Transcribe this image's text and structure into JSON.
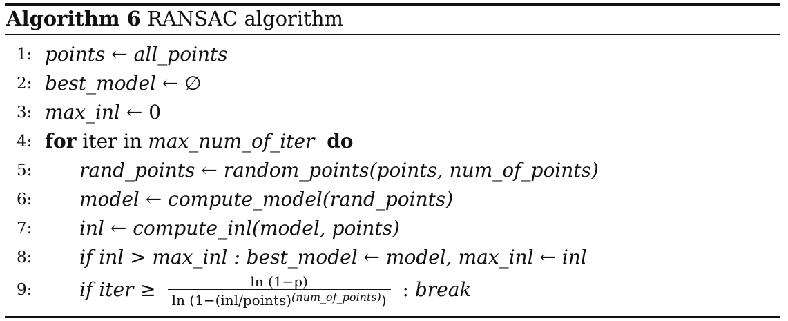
{
  "algorithm": {
    "label": "Algorithm 6",
    "name": "RANSAC algorithm"
  },
  "lines": [
    {
      "num": "1:",
      "lhs": "points",
      "arrow": "←",
      "rhs": "all_points"
    },
    {
      "num": "2:",
      "lhs": "best_model",
      "arrow": "←",
      "rhs": "∅"
    },
    {
      "num": "3:",
      "lhs": "max_inl",
      "arrow": "←",
      "rhs": "0"
    },
    {
      "num": "4:",
      "kw_for": "for",
      "text_iter": "iter in",
      "range": "max_num_of_iter",
      "kw_do": "do"
    },
    {
      "num": "5:",
      "lhs": "rand_points",
      "arrow": "←",
      "fn": "random_points",
      "args": "(points, num_of_points)"
    },
    {
      "num": "6:",
      "lhs": "model",
      "arrow": "←",
      "fn": "compute_model",
      "args": "(rand_points)"
    },
    {
      "num": "7:",
      "lhs": "inl",
      "arrow": "←",
      "fn": "compute_inl",
      "args": "(model, points)"
    },
    {
      "num": "8:",
      "kw_if": "if",
      "cond": "inl > max_inl :",
      "assign1": "best_model ← model,",
      "assign2": "max_inl ← inl"
    },
    {
      "num": "9:",
      "kw_if": "if",
      "cond": "iter ≥",
      "frac_num": "ln (1−p)",
      "frac_den_a": "ln (1−(inl/points)",
      "frac_den_sup": "(num_of_points)",
      "frac_den_b": ")",
      "tail": ":",
      "action": "break"
    }
  ]
}
